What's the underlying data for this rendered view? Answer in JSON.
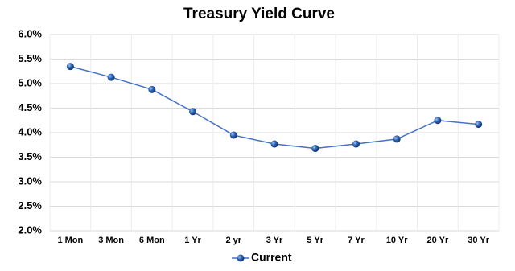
{
  "chart_data": {
    "type": "line",
    "title": "Treasury Yield Curve",
    "categories": [
      "1 Mon",
      "3 Mon",
      "6 Mon",
      "1 Yr",
      "2 yr",
      "3 Yr",
      "5 Yr",
      "7 Yr",
      "10 Yr",
      "20 Yr",
      "30 Yr"
    ],
    "series": [
      {
        "name": "Current",
        "color": "#4472c4",
        "values": [
          5.35,
          5.13,
          4.88,
          4.43,
          3.95,
          3.77,
          3.68,
          3.77,
          3.87,
          4.25,
          4.17
        ]
      }
    ],
    "ylim": [
      2.0,
      6.0
    ],
    "yticks": [
      {
        "value": 2.0,
        "label": "2.0%"
      },
      {
        "value": 2.5,
        "label": "2.5%"
      },
      {
        "value": 3.0,
        "label": "3.0%"
      },
      {
        "value": 3.5,
        "label": "3.5%"
      },
      {
        "value": 4.0,
        "label": "4.0%"
      },
      {
        "value": 4.5,
        "label": "4.5%"
      },
      {
        "value": 5.0,
        "label": "5.0%"
      },
      {
        "value": 5.5,
        "label": "5.5%"
      },
      {
        "value": 6.0,
        "label": "6.0%"
      }
    ],
    "grid": true,
    "legend": "bottom"
  }
}
